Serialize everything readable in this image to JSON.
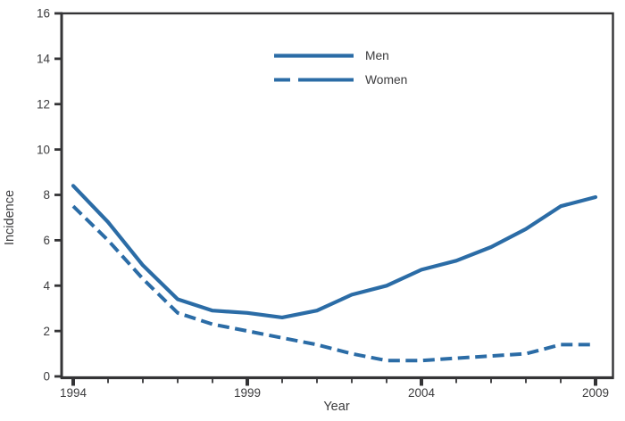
{
  "colors": {
    "line_blue": "#2b6ca6",
    "axis": "#343436",
    "text": "#3b3b3d",
    "background": "#ffffff"
  },
  "chart_data": {
    "type": "line",
    "title": "",
    "xlabel": "Year",
    "ylabel": "Incidence",
    "xlim": [
      1994,
      2009
    ],
    "ylim": [
      0,
      16
    ],
    "grid": false,
    "legend_position": "top-center-inside",
    "x": [
      1994,
      1995,
      1996,
      1997,
      1998,
      1999,
      2000,
      2001,
      2002,
      2003,
      2004,
      2005,
      2006,
      2007,
      2008,
      2009
    ],
    "yticks": [
      0,
      2,
      4,
      6,
      8,
      10,
      12,
      14,
      16
    ],
    "xticks_major": [
      1994,
      1999,
      2004,
      2009
    ],
    "xticks_minor_interval": 1,
    "series": [
      {
        "name": "Men",
        "line_style": "solid",
        "values": [
          8.4,
          6.8,
          4.9,
          3.4,
          2.9,
          2.8,
          2.6,
          2.9,
          3.6,
          4.0,
          4.7,
          5.1,
          5.7,
          6.5,
          7.5,
          7.9
        ]
      },
      {
        "name": "Women",
        "line_style": "dashed",
        "values": [
          7.5,
          6.0,
          4.3,
          2.8,
          2.3,
          2.0,
          1.7,
          1.4,
          1.0,
          0.7,
          0.7,
          0.8,
          0.9,
          1.0,
          1.4,
          1.4
        ]
      }
    ]
  }
}
